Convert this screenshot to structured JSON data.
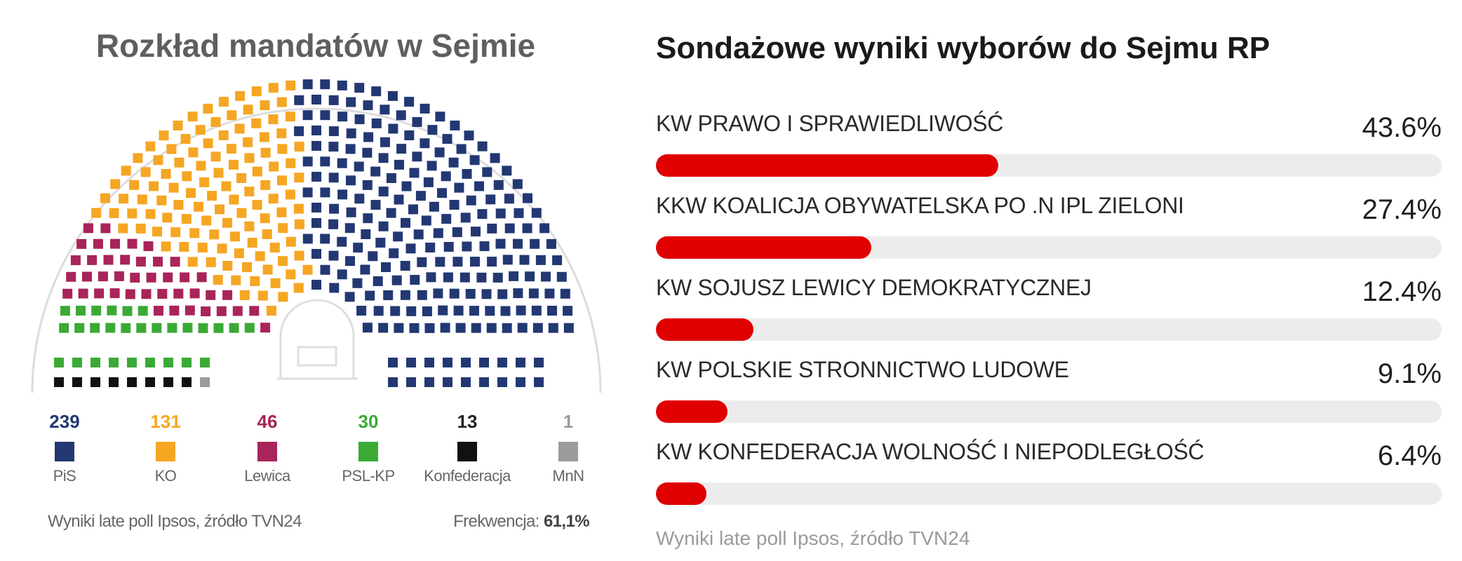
{
  "left": {
    "title": "Rozkład mandatów w Sejmie",
    "source": "Wyniki late poll Ipsos, źródło TVN24",
    "turnout_label": "Frekwencja:",
    "turnout_value": "61,1%"
  },
  "seats": [
    {
      "party": "PiS",
      "count": 239,
      "count_label": "239",
      "color": "#233873"
    },
    {
      "party": "KO",
      "count": 131,
      "count_label": "131",
      "color": "#f5a623"
    },
    {
      "party": "Lewica",
      "count": 46,
      "count_label": "46",
      "color": "#a8245a"
    },
    {
      "party": "PSL-KP",
      "count": 30,
      "count_label": "30",
      "color": "#3aaa35"
    },
    {
      "party": "Konfederacja",
      "count": 13,
      "count_label": "13",
      "color": "#111111"
    },
    {
      "party": "MnN",
      "count": 1,
      "count_label": "1",
      "color": "#9b9b9b"
    }
  ],
  "right": {
    "title": "Sondażowe wyniki wyborów do Sejmu RP",
    "source": "Wyniki late poll Ipsos, źródło TVN24"
  },
  "chart_data": [
    {
      "type": "bar",
      "title": "Sondażowe wyniki wyborów do Sejmu RP",
      "categories": [
        "KW PRAWO I SPRAWIEDLIWOŚĆ",
        "KKW KOALICJA OBYWATELSKA PO .N IPL ZIELONI",
        "KW SOJUSZ LEWICY DEMOKRATYCZNEJ",
        "KW POLSKIE STRONNICTWO LUDOWE",
        "KW KONFEDERACJA WOLNOŚĆ I NIEPODLEGŁOŚĆ"
      ],
      "values": [
        43.6,
        27.4,
        12.4,
        9.1,
        6.4
      ],
      "value_labels": [
        "43.6%",
        "27.4%",
        "12.4%",
        "9.1%",
        "6.4%"
      ],
      "ylim": [
        0,
        100
      ],
      "bar_color": "#e00000",
      "track_color": "#ececec"
    },
    {
      "type": "pie",
      "title": "Rozkład mandatów w Sejmie",
      "categories": [
        "PiS",
        "KO",
        "Lewica",
        "PSL-KP",
        "Konfederacja",
        "MnN"
      ],
      "values": [
        239,
        131,
        46,
        30,
        13,
        1
      ]
    }
  ]
}
